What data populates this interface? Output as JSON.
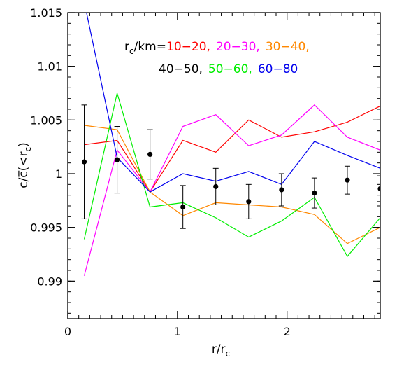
{
  "chart_data": {
    "type": "line",
    "title": "",
    "xlabel": "r/r",
    "xlabel_sub": "c",
    "ylabel": "c/c̅(<r",
    "ylabel_sub": "c",
    "ylabel_close": ")",
    "xlim": [
      0,
      2.85
    ],
    "ylim": [
      0.9865,
      1.015
    ],
    "x_ticks": [
      0,
      1,
      2
    ],
    "x_tick_labels": [
      "0",
      "1",
      "2"
    ],
    "y_ticks": [
      0.99,
      0.995,
      1.0,
      1.005,
      1.01,
      1.015
    ],
    "y_tick_labels": [
      "0.99",
      "0.995",
      "1",
      "1.005",
      "1.01",
      "1.015"
    ],
    "x_minor_step": 0.1,
    "y_minor_step": 0.001,
    "grid": false,
    "legend": {
      "placement": "top-right",
      "prefix_main": "r",
      "prefix_sub": "c",
      "prefix_suffix": "/km="
    },
    "x": [
      0.15,
      0.45,
      0.75,
      1.05,
      1.35,
      1.65,
      1.95,
      2.25,
      2.55,
      2.85
    ],
    "series": [
      {
        "name": "10−20,",
        "color": "#ff0000",
        "values": [
          1.0027,
          1.0031,
          0.9983,
          1.0031,
          1.002,
          1.005,
          1.0034,
          1.0039,
          1.0048,
          1.0063
        ]
      },
      {
        "name": "20−30,",
        "color": "#ff00ff",
        "values": [
          0.9905,
          1.0022,
          0.9983,
          1.0044,
          1.0055,
          1.0026,
          1.0036,
          1.0064,
          1.0034,
          1.0022
        ]
      },
      {
        "name": "30−40,",
        "color": "#ff8800",
        "values": [
          1.0045,
          1.0041,
          0.9983,
          0.9961,
          0.9973,
          0.9971,
          0.9969,
          0.9962,
          0.9935,
          0.995
        ]
      },
      {
        "name": "40−50,",
        "color": "#000000",
        "values": [
          1.0011,
          1.0013,
          1.0018,
          0.9969,
          0.9988,
          0.9974,
          0.9985,
          0.9982,
          0.9994,
          0.9986
        ],
        "errors": [
          0.0053,
          0.0031,
          0.0023,
          0.002,
          0.0017,
          0.0016,
          0.0015,
          0.0014,
          0.0013,
          0.0012
        ],
        "style": "points"
      },
      {
        "name": "50−60,",
        "color": "#00ee00",
        "values": [
          0.9939,
          1.0075,
          0.9969,
          0.9973,
          0.9959,
          0.9941,
          0.9956,
          0.9978,
          0.9923,
          0.9959
        ]
      },
      {
        "name": "60−80",
        "color": "#0000ee",
        "values": [
          1.016,
          1.0015,
          0.9983,
          1.0,
          0.9993,
          1.0002,
          0.999,
          1.003,
          1.0017,
          1.0005
        ]
      }
    ]
  }
}
